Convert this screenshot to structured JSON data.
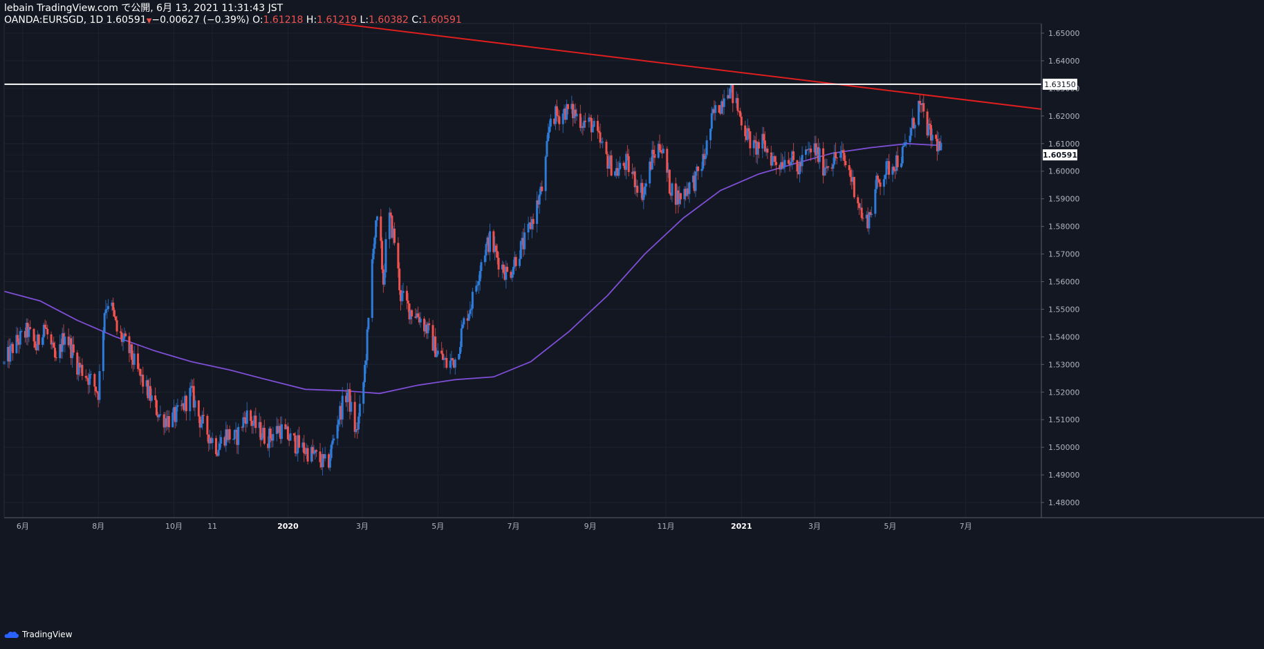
{
  "header": {
    "line1": "lebain TradingView.com で公開, 6月 13, 2021 11:31:43 JST",
    "symbol": "OANDA:EURSGD, 1D",
    "last": "1.60591",
    "change": "−0.00627 (−0.39%)",
    "o_label": "O:",
    "o_value": "1.61218",
    "h_label": "H:",
    "h_value": "1.61219",
    "l_label": "L:",
    "l_value": "1.60382",
    "c_label": "C:",
    "c_value": "1.60591"
  },
  "footer": {
    "brand": "TradingView",
    "logo_icon": "tradingview-cloud-icon"
  },
  "colors": {
    "background": "#131722",
    "up": "#2f7bd8",
    "down": "#ef5350",
    "ma": "#7e4fd6",
    "trendline": "#e01e1e",
    "level": "#ffffff",
    "grid": "#1e2230"
  },
  "chart_data": {
    "type": "candlestick",
    "symbol": "OANDA:EURSGD",
    "timeframe": "1D",
    "ylim": [
      1.4745,
      1.6535
    ],
    "y_ticks": [
      "1.65000",
      "1.64000",
      "1.63000",
      "1.62000",
      "1.61000",
      "1.60000",
      "1.59000",
      "1.58000",
      "1.57000",
      "1.56000",
      "1.55000",
      "1.54000",
      "1.53000",
      "1.52000",
      "1.51000",
      "1.50000",
      "1.49000",
      "1.48000"
    ],
    "x_range": [
      "2019-05-17",
      "2021-08-31"
    ],
    "x_ticks": [
      {
        "label": "6月",
        "date": "2019-06-01",
        "bold": false
      },
      {
        "label": "8月",
        "date": "2019-08-01",
        "bold": false
      },
      {
        "label": "10月",
        "date": "2019-10-01",
        "bold": false
      },
      {
        "label": "11",
        "date": "2019-11-01",
        "bold": false
      },
      {
        "label": "2020",
        "date": "2020-01-01",
        "bold": true
      },
      {
        "label": "3月",
        "date": "2020-03-01",
        "bold": false
      },
      {
        "label": "5月",
        "date": "2020-05-01",
        "bold": false
      },
      {
        "label": "7月",
        "date": "2020-07-01",
        "bold": false
      },
      {
        "label": "9月",
        "date": "2020-09-01",
        "bold": false
      },
      {
        "label": "11月",
        "date": "2020-11-01",
        "bold": false
      },
      {
        "label": "2021",
        "date": "2021-01-01",
        "bold": true
      },
      {
        "label": "3月",
        "date": "2021-03-01",
        "bold": false
      },
      {
        "label": "5月",
        "date": "2021-05-01",
        "bold": false
      },
      {
        "label": "7月",
        "date": "2021-07-01",
        "bold": false
      }
    ],
    "close_path": [
      [
        "2019-05-17",
        1.53
      ],
      [
        "2019-05-25",
        1.537
      ],
      [
        "2019-06-05",
        1.542
      ],
      [
        "2019-06-12",
        1.536
      ],
      [
        "2019-06-18",
        1.545
      ],
      [
        "2019-06-28",
        1.53
      ],
      [
        "2019-07-05",
        1.542
      ],
      [
        "2019-07-15",
        1.53
      ],
      [
        "2019-07-25",
        1.525
      ],
      [
        "2019-08-01",
        1.52
      ],
      [
        "2019-08-06",
        1.55
      ],
      [
        "2019-08-10",
        1.554
      ],
      [
        "2019-08-16",
        1.542
      ],
      [
        "2019-08-25",
        1.536
      ],
      [
        "2019-09-01",
        1.528
      ],
      [
        "2019-09-10",
        1.52
      ],
      [
        "2019-09-20",
        1.511
      ],
      [
        "2019-09-28",
        1.51
      ],
      [
        "2019-10-05",
        1.512
      ],
      [
        "2019-10-15",
        1.52
      ],
      [
        "2019-10-22",
        1.51
      ],
      [
        "2019-10-30",
        1.504
      ],
      [
        "2019-11-05",
        1.5
      ],
      [
        "2019-11-12",
        1.505
      ],
      [
        "2019-11-20",
        1.503
      ],
      [
        "2019-11-28",
        1.512
      ],
      [
        "2019-12-05",
        1.508
      ],
      [
        "2019-12-15",
        1.503
      ],
      [
        "2019-12-25",
        1.507
      ],
      [
        "2020-01-05",
        1.502
      ],
      [
        "2020-01-15",
        1.499
      ],
      [
        "2020-01-25",
        1.496
      ],
      [
        "2020-02-02",
        1.493
      ],
      [
        "2020-02-10",
        1.51
      ],
      [
        "2020-02-18",
        1.52
      ],
      [
        "2020-02-25",
        1.505
      ],
      [
        "2020-03-01",
        1.518
      ],
      [
        "2020-03-06",
        1.545
      ],
      [
        "2020-03-10",
        1.575
      ],
      [
        "2020-03-14",
        1.583
      ],
      [
        "2020-03-18",
        1.56
      ],
      [
        "2020-03-22",
        1.585
      ],
      [
        "2020-03-27",
        1.575
      ],
      [
        "2020-04-01",
        1.555
      ],
      [
        "2020-04-08",
        1.55
      ],
      [
        "2020-04-15",
        1.548
      ],
      [
        "2020-04-22",
        1.543
      ],
      [
        "2020-04-30",
        1.535
      ],
      [
        "2020-05-08",
        1.53
      ],
      [
        "2020-05-15",
        1.532
      ],
      [
        "2020-05-22",
        1.545
      ],
      [
        "2020-05-30",
        1.555
      ],
      [
        "2020-06-06",
        1.57
      ],
      [
        "2020-06-12",
        1.575
      ],
      [
        "2020-06-20",
        1.567
      ],
      [
        "2020-06-27",
        1.562
      ],
      [
        "2020-07-04",
        1.57
      ],
      [
        "2020-07-11",
        1.575
      ],
      [
        "2020-07-18",
        1.585
      ],
      [
        "2020-07-25",
        1.595
      ],
      [
        "2020-07-31",
        1.62
      ],
      [
        "2020-08-06",
        1.62
      ],
      [
        "2020-08-12",
        1.622
      ],
      [
        "2020-08-19",
        1.621
      ],
      [
        "2020-08-26",
        1.618
      ],
      [
        "2020-09-02",
        1.617
      ],
      [
        "2020-09-09",
        1.61
      ],
      [
        "2020-09-16",
        1.603
      ],
      [
        "2020-09-23",
        1.6
      ],
      [
        "2020-09-30",
        1.603
      ],
      [
        "2020-10-07",
        1.597
      ],
      [
        "2020-10-14",
        1.592
      ],
      [
        "2020-10-21",
        1.605
      ],
      [
        "2020-10-28",
        1.61
      ],
      [
        "2020-11-04",
        1.595
      ],
      [
        "2020-11-11",
        1.59
      ],
      [
        "2020-11-18",
        1.594
      ],
      [
        "2020-11-25",
        1.597
      ],
      [
        "2020-12-02",
        1.605
      ],
      [
        "2020-12-09",
        1.62
      ],
      [
        "2020-12-16",
        1.625
      ],
      [
        "2020-12-20",
        1.632
      ],
      [
        "2020-12-27",
        1.625
      ],
      [
        "2021-01-04",
        1.615
      ],
      [
        "2021-01-11",
        1.608
      ],
      [
        "2021-01-18",
        1.61
      ],
      [
        "2021-01-25",
        1.605
      ],
      [
        "2021-02-01",
        1.603
      ],
      [
        "2021-02-08",
        1.606
      ],
      [
        "2021-02-15",
        1.6
      ],
      [
        "2021-02-22",
        1.606
      ],
      [
        "2021-03-01",
        1.608
      ],
      [
        "2021-03-08",
        1.602
      ],
      [
        "2021-03-15",
        1.604
      ],
      [
        "2021-03-22",
        1.606
      ],
      [
        "2021-03-29",
        1.6
      ],
      [
        "2021-04-05",
        1.59
      ],
      [
        "2021-04-10",
        1.58
      ],
      [
        "2021-04-15",
        1.585
      ],
      [
        "2021-04-20",
        1.595
      ],
      [
        "2021-04-27",
        1.6
      ],
      [
        "2021-05-04",
        1.603
      ],
      [
        "2021-05-11",
        1.606
      ],
      [
        "2021-05-18",
        1.615
      ],
      [
        "2021-05-24",
        1.624
      ],
      [
        "2021-05-28",
        1.62
      ],
      [
        "2021-06-02",
        1.613
      ],
      [
        "2021-06-08",
        1.61
      ],
      [
        "2021-06-12",
        1.606
      ]
    ],
    "moving_average": [
      [
        "2019-05-17",
        1.5565
      ],
      [
        "2019-06-15",
        1.553
      ],
      [
        "2019-07-15",
        1.546
      ],
      [
        "2019-08-15",
        1.54
      ],
      [
        "2019-09-15",
        1.535
      ],
      [
        "2019-10-15",
        1.531
      ],
      [
        "2019-11-15",
        1.528
      ],
      [
        "2019-12-15",
        1.5245
      ],
      [
        "2020-01-15",
        1.521
      ],
      [
        "2020-02-15",
        1.5205
      ],
      [
        "2020-03-15",
        1.5195
      ],
      [
        "2020-04-15",
        1.5225
      ],
      [
        "2020-05-15",
        1.5245
      ],
      [
        "2020-06-15",
        1.5255
      ],
      [
        "2020-07-15",
        1.531
      ],
      [
        "2020-08-15",
        1.542
      ],
      [
        "2020-09-15",
        1.555
      ],
      [
        "2020-10-15",
        1.57
      ],
      [
        "2020-11-15",
        1.583
      ],
      [
        "2020-12-15",
        1.593
      ],
      [
        "2021-01-15",
        1.599
      ],
      [
        "2021-02-15",
        1.603
      ],
      [
        "2021-03-15",
        1.6065
      ],
      [
        "2021-04-15",
        1.6085
      ],
      [
        "2021-05-15",
        1.61
      ],
      [
        "2021-06-12",
        1.6093
      ]
    ],
    "horizontal_level": {
      "value": 1.6315,
      "label": "1.63150"
    },
    "trendline": {
      "start": [
        "2020-02-10",
        1.6535
      ],
      "end": [
        "2021-08-31",
        1.6225
      ]
    },
    "last_price": {
      "value": 1.60591,
      "label": "1.60591"
    },
    "grid": true
  }
}
